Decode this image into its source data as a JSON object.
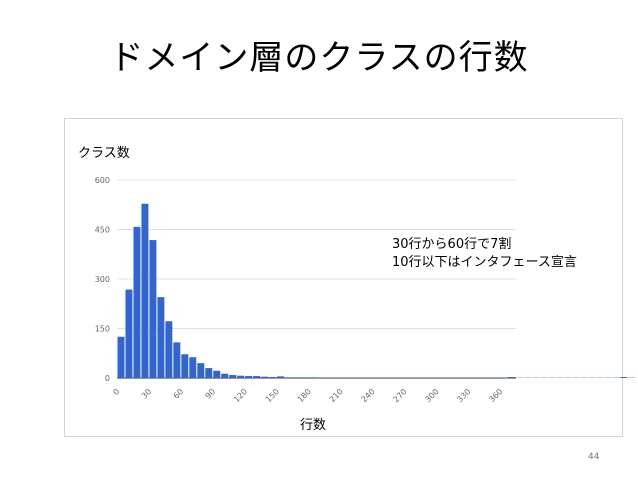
{
  "slide": {
    "title": "ドメイン層のクラスの行数",
    "page_number": "44",
    "annotation_line1": "30行から60行で7割",
    "annotation_line2": "10行以下はインタフェース宣言"
  },
  "chart_data": {
    "type": "bar",
    "title": "",
    "xlabel": "行数",
    "ylabel": "クラス数",
    "bin_width": 7.5,
    "x_start": 0,
    "values": [
      125,
      268,
      458,
      528,
      418,
      245,
      172,
      108,
      72,
      63,
      45,
      30,
      22,
      13,
      9,
      7,
      6,
      6,
      4,
      3,
      5,
      2,
      2,
      2,
      2,
      1,
      1,
      1,
      1,
      1,
      1,
      1,
      1,
      1,
      1,
      1,
      1,
      1,
      1,
      1,
      1,
      1,
      1,
      1,
      1,
      1,
      1,
      1,
      1,
      3,
      1,
      1,
      1,
      1,
      1,
      1,
      1,
      1,
      1,
      1,
      1,
      1,
      1,
      3,
      1
    ],
    "xlim": [
      0,
      375
    ],
    "ylim": [
      0,
      600
    ],
    "yticks": [
      0,
      150,
      300,
      450,
      600
    ],
    "xticks": [
      0,
      30,
      60,
      90,
      120,
      150,
      180,
      210,
      240,
      270,
      300,
      330,
      360
    ],
    "grid": true,
    "bar_color": "#3366cc"
  }
}
